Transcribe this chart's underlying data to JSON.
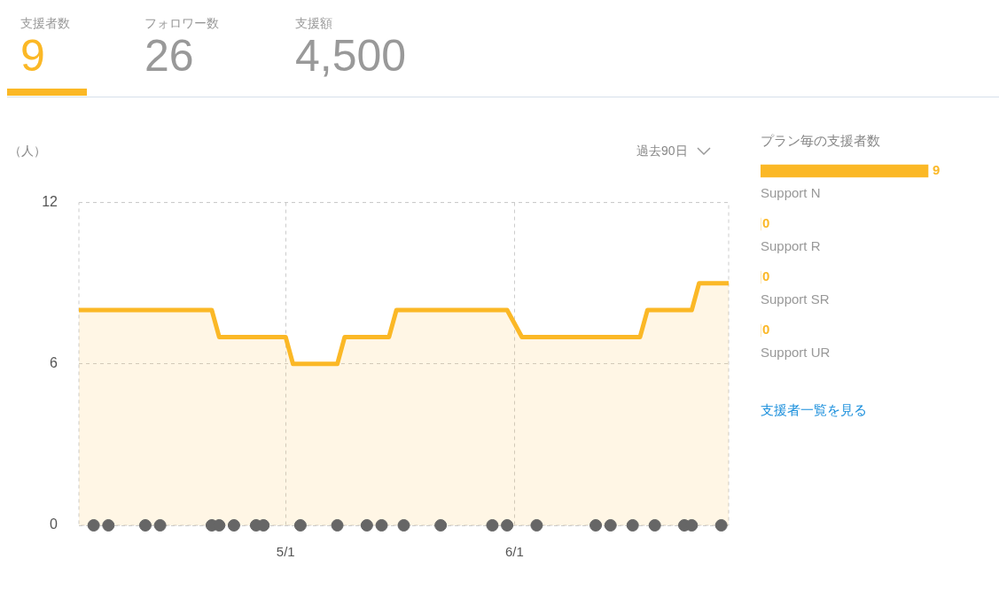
{
  "chart_data": [
    {
      "type": "other",
      "categories": [
        "支援者数",
        "フォロワー数",
        "支援額"
      ],
      "value_labels": [
        "9",
        "26",
        "4,500"
      ],
      "colors": [
        "#fbb826",
        "#999999",
        "#999999"
      ]
    },
    {
      "type": "area",
      "ylabel": "（人）",
      "annotations": [
        "過去90日"
      ],
      "xlim": [
        "--04-03",
        "--06-30"
      ],
      "xticks": [
        {
          "value": "--05-01",
          "label": "5/1"
        },
        {
          "value": "--06-01",
          "label": "6/1"
        }
      ],
      "ylim": [
        0,
        12
      ],
      "yticks": [
        0,
        6,
        12
      ],
      "grid": true,
      "series": [
        {
          "type": "area",
          "color": "#fbb826",
          "marker": "none",
          "x": [
            "--04-03",
            "--04-21",
            "--04-22",
            "--05-01",
            "--05-02",
            "--05-08",
            "--05-09",
            "--05-15",
            "--05-16",
            "--05-31",
            "--06-02",
            "--06-18",
            "--06-19",
            "--06-25",
            "--06-26",
            "--06-30"
          ],
          "values": [
            8,
            8,
            7,
            7,
            6,
            6,
            7,
            7,
            8,
            8,
            7,
            7,
            8,
            8,
            9,
            9
          ]
        },
        {
          "type": "scatter",
          "color": "#666666",
          "marker": "circle",
          "x": [
            "--04-05",
            "--04-07",
            "--04-12",
            "--04-14",
            "--04-21",
            "--04-22",
            "--04-24",
            "--04-27",
            "--04-28",
            "--05-03",
            "--05-08",
            "--05-12",
            "--05-14",
            "--05-17",
            "--05-22",
            "--05-29",
            "--05-31",
            "--06-04",
            "--06-12",
            "--06-14",
            "--06-17",
            "--06-20",
            "--06-24",
            "--06-25",
            "--06-29"
          ],
          "values": [
            0,
            0,
            0,
            0,
            0,
            0,
            0,
            0,
            0,
            0,
            0,
            0,
            0,
            0,
            0,
            0,
            0,
            0,
            0,
            0,
            0,
            0,
            0,
            0,
            0
          ]
        }
      ]
    },
    {
      "type": "bar",
      "orientation": "horizontal",
      "title": "プラン毎の支援者数",
      "categories": [
        "Support N",
        "Support R",
        "Support SR",
        "Support UR"
      ],
      "values": [
        9,
        0,
        0,
        0
      ],
      "color": "#fbb826",
      "data_labels": true,
      "tick_labels": false,
      "annotations": [
        "支援者一覧を見る"
      ]
    }
  ]
}
